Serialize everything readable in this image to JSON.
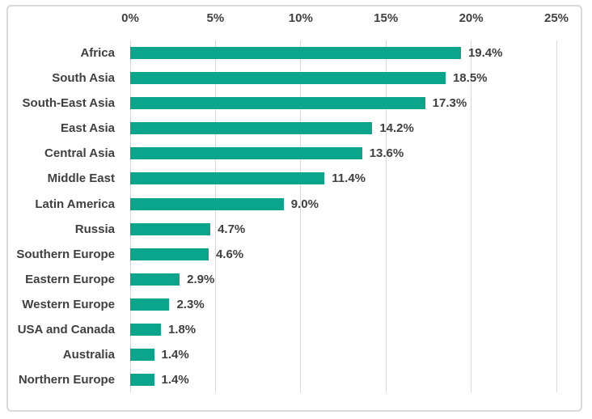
{
  "chart_data": {
    "type": "bar",
    "orientation": "horizontal",
    "title": "",
    "categories": [
      "Africa",
      "South Asia",
      "South-East Asia",
      "East Asia",
      "Central Asia",
      "Middle East",
      "Latin America",
      "Russia",
      "Southern Europe",
      "Eastern Europe",
      "Western Europe",
      "USA and Canada",
      "Australia",
      "Northern Europe"
    ],
    "values": [
      19.4,
      18.5,
      17.3,
      14.2,
      13.6,
      11.4,
      9.0,
      4.7,
      4.6,
      2.9,
      2.3,
      1.8,
      1.4,
      1.4
    ],
    "data_labels": [
      "19.4%",
      "18.5%",
      "17.3%",
      "14.2%",
      "13.6%",
      "11.4%",
      "9.0%",
      "4.7%",
      "4.6%",
      "2.9%",
      "2.3%",
      "1.8%",
      "1.4%",
      "1.4%"
    ],
    "x_axis": {
      "position": "top",
      "min": 0,
      "max": 25,
      "tick_labels": [
        "0%",
        "5%",
        "10%",
        "15%",
        "20%",
        "25%"
      ],
      "tick_values": [
        0,
        5,
        10,
        15,
        20,
        25
      ]
    },
    "grid": true,
    "legend": "none",
    "colors": {
      "bar": "#0ba58c",
      "text": "#404040",
      "gridline": "#d9d9d9",
      "frame_border": "#d9d9d9",
      "background": "#ffffff"
    }
  }
}
